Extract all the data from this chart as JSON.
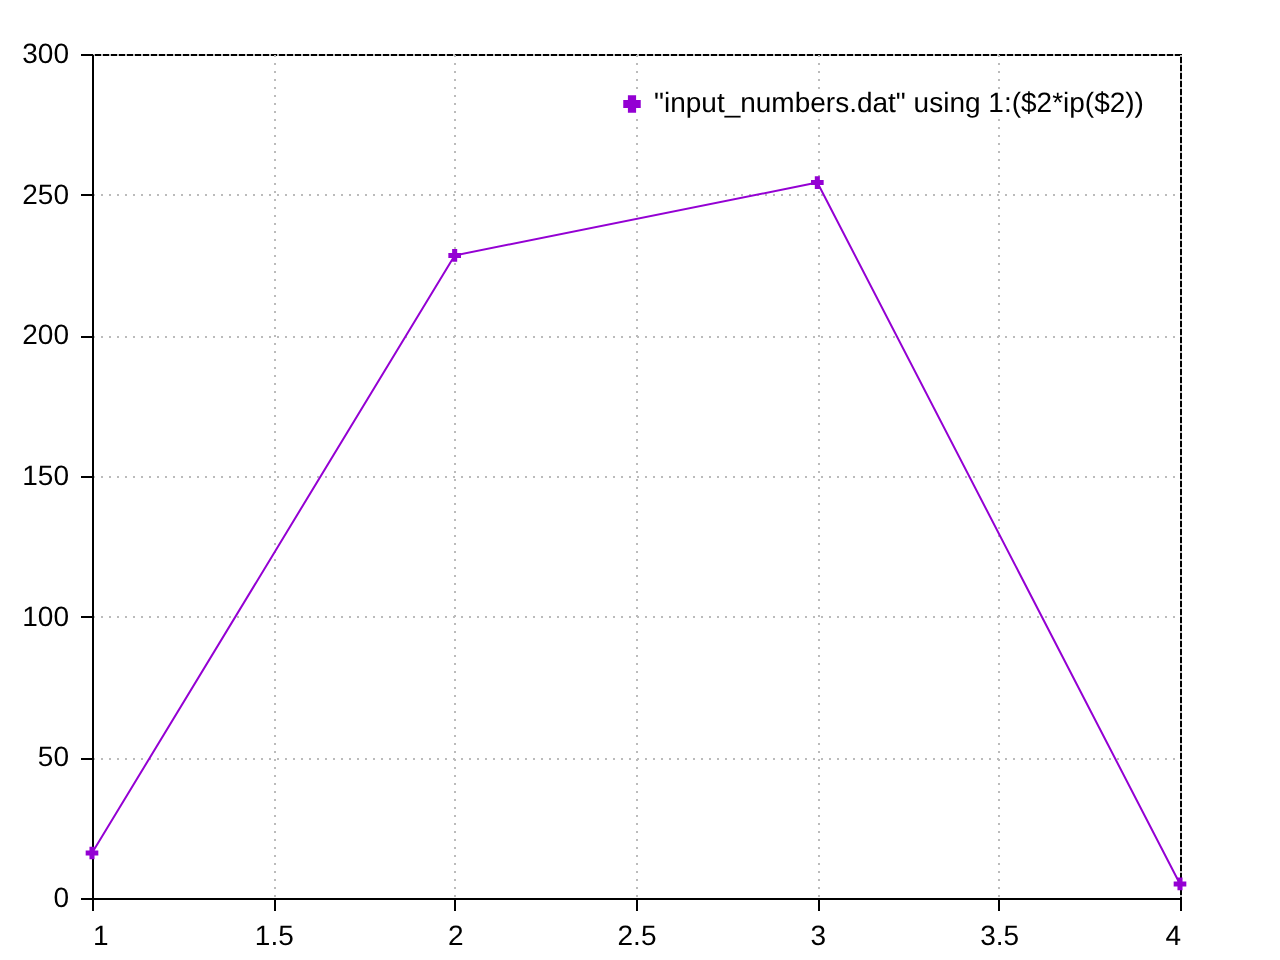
{
  "chart_data": {
    "type": "line",
    "x": [
      1,
      2,
      3,
      4
    ],
    "series": [
      {
        "name": "\"input_numbers.dat\" using 1:($2*ip($2))",
        "color": "#9400d3",
        "values": [
          16,
          228.4,
          254.3,
          5
        ]
      }
    ],
    "xlim": [
      1,
      4
    ],
    "xticks": [
      1,
      1.5,
      2,
      2.5,
      3,
      3.5,
      4
    ],
    "ylim": [
      0,
      300
    ],
    "yticks": [
      0,
      50,
      100,
      150,
      200,
      250,
      300
    ],
    "grid": true,
    "legend": "top right",
    "marker": "cross",
    "line_style": "solid"
  }
}
